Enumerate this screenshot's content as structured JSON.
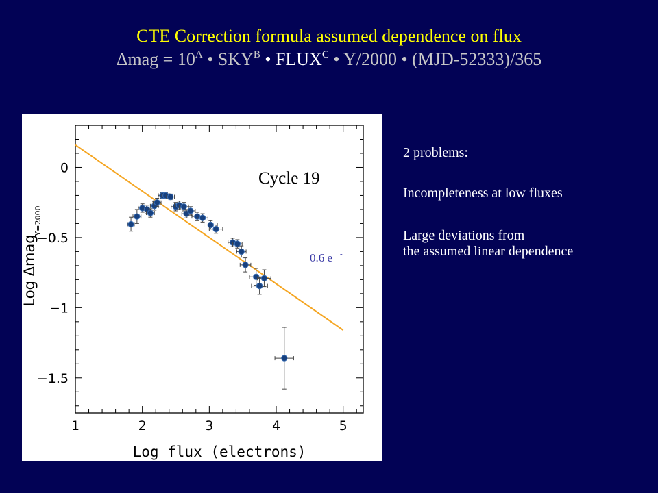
{
  "title": {
    "line1": "CTE Correction formula assumed  dependence on flux",
    "delta": "Δ",
    "mag_eq": "mag = 10",
    "sup_a": "A",
    "sky": " • SKY",
    "sup_b": "B",
    "flux": " • FLUX",
    "sup_c": "C",
    "rest": " •  Y/2000 • (MJD-52333)/365"
  },
  "notes": {
    "problems_header": "2 problems:",
    "problem1": "Incompleteness at low fluxes",
    "problem2_line1": "Large deviations from",
    "problem2_line2": "the assumed linear dependence"
  },
  "chart_data": {
    "type": "scatter",
    "xlabel": "Log flux (electrons)",
    "ylabel_main": "Log  Δmag",
    "ylabel_sub": "Y=2000",
    "annotation": "Cycle 19",
    "line_label": "0.6 e",
    "line_label_sup": "-",
    "xlim": [
      1,
      5.3
    ],
    "ylim": [
      -1.75,
      0.3
    ],
    "xticks": [
      1,
      2,
      3,
      4,
      5
    ],
    "xtick_labels": [
      "1",
      "2",
      "3",
      "4",
      "5"
    ],
    "yticks": [
      0,
      -0.5,
      -1,
      -1.5
    ],
    "ytick_labels": [
      "0",
      "−0.5",
      "−1",
      "−1.5"
    ],
    "line": {
      "x": [
        1.0,
        5.0
      ],
      "y": [
        0.16,
        -1.16
      ],
      "color": "#f5a623"
    },
    "points": [
      {
        "x": 1.83,
        "y": -0.405,
        "xerr": 0.05,
        "yerr": 0.05
      },
      {
        "x": 1.92,
        "y": -0.35,
        "xerr": 0.06,
        "yerr": 0.05
      },
      {
        "x": 2.0,
        "y": -0.29,
        "xerr": 0.06,
        "yerr": 0.03
      },
      {
        "x": 2.07,
        "y": -0.3,
        "xerr": 0.06,
        "yerr": 0.03
      },
      {
        "x": 2.12,
        "y": -0.325,
        "xerr": 0.06,
        "yerr": 0.03
      },
      {
        "x": 2.18,
        "y": -0.275,
        "xerr": 0.06,
        "yerr": 0.03
      },
      {
        "x": 2.22,
        "y": -0.25,
        "xerr": 0.06,
        "yerr": 0.03
      },
      {
        "x": 2.3,
        "y": -0.2,
        "xerr": 0.06,
        "yerr": 0.02
      },
      {
        "x": 2.35,
        "y": -0.2,
        "xerr": 0.06,
        "yerr": 0.02
      },
      {
        "x": 2.42,
        "y": -0.21,
        "xerr": 0.06,
        "yerr": 0.02
      },
      {
        "x": 2.5,
        "y": -0.28,
        "xerr": 0.07,
        "yerr": 0.03
      },
      {
        "x": 2.55,
        "y": -0.27,
        "xerr": 0.07,
        "yerr": 0.03
      },
      {
        "x": 2.62,
        "y": -0.28,
        "xerr": 0.07,
        "yerr": 0.03
      },
      {
        "x": 2.66,
        "y": -0.33,
        "xerr": 0.07,
        "yerr": 0.03
      },
      {
        "x": 2.72,
        "y": -0.31,
        "xerr": 0.07,
        "yerr": 0.03
      },
      {
        "x": 2.82,
        "y": -0.35,
        "xerr": 0.08,
        "yerr": 0.03
      },
      {
        "x": 2.9,
        "y": -0.36,
        "xerr": 0.08,
        "yerr": 0.03
      },
      {
        "x": 3.02,
        "y": -0.41,
        "xerr": 0.1,
        "yerr": 0.03
      },
      {
        "x": 3.1,
        "y": -0.44,
        "xerr": 0.1,
        "yerr": 0.03
      },
      {
        "x": 3.35,
        "y": -0.535,
        "xerr": 0.07,
        "yerr": 0.03
      },
      {
        "x": 3.42,
        "y": -0.545,
        "xerr": 0.07,
        "yerr": 0.03
      },
      {
        "x": 3.48,
        "y": -0.6,
        "xerr": 0.07,
        "yerr": 0.04
      },
      {
        "x": 3.54,
        "y": -0.695,
        "xerr": 0.08,
        "yerr": 0.05
      },
      {
        "x": 3.7,
        "y": -0.78,
        "xerr": 0.1,
        "yerr": 0.06
      },
      {
        "x": 3.75,
        "y": -0.845,
        "xerr": 0.12,
        "yerr": 0.06
      },
      {
        "x": 3.82,
        "y": -0.79,
        "xerr": 0.1,
        "yerr": 0.06
      },
      {
        "x": 4.12,
        "y": -1.36,
        "xerr": 0.14,
        "yerr": 0.22
      }
    ]
  }
}
